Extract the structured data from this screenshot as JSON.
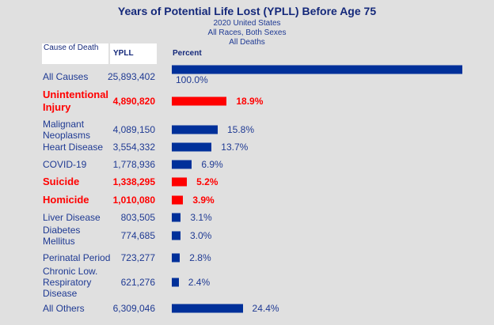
{
  "chart_data": {
    "type": "bar",
    "title": "Years of Potential Life Lost (YPLL) Before Age 75",
    "subtitles": [
      "2020 United States",
      "All Races, Both Sexes",
      "All Deaths"
    ],
    "headers": {
      "cause": "Cause of Death",
      "ypll": "YPLL",
      "percent": "Percent"
    },
    "xlim": [
      0,
      100
    ],
    "colors": {
      "normal": "#00309a",
      "highlight": "#ff0000"
    },
    "rows": [
      {
        "cause": "All Causes",
        "ypll": "25,893,402",
        "percent": 100.0,
        "percent_label": "100.0%",
        "highlight": false
      },
      {
        "cause": "Unintentional Injury",
        "ypll": "4,890,820",
        "percent": 18.9,
        "percent_label": "18.9%",
        "highlight": true
      },
      {
        "cause": "Malignant Neoplasms",
        "ypll": "4,089,150",
        "percent": 15.8,
        "percent_label": "15.8%",
        "highlight": false
      },
      {
        "cause": "Heart Disease",
        "ypll": "3,554,332",
        "percent": 13.7,
        "percent_label": "13.7%",
        "highlight": false
      },
      {
        "cause": "COVID-19",
        "ypll": "1,778,936",
        "percent": 6.9,
        "percent_label": "6.9%",
        "highlight": false
      },
      {
        "cause": "Suicide",
        "ypll": "1,338,295",
        "percent": 5.2,
        "percent_label": "5.2%",
        "highlight": true
      },
      {
        "cause": "Homicide",
        "ypll": "1,010,080",
        "percent": 3.9,
        "percent_label": "3.9%",
        "highlight": true
      },
      {
        "cause": "Liver Disease",
        "ypll": "803,505",
        "percent": 3.1,
        "percent_label": "3.1%",
        "highlight": false
      },
      {
        "cause": "Diabetes Mellitus",
        "ypll": "774,685",
        "percent": 3.0,
        "percent_label": "3.0%",
        "highlight": false
      },
      {
        "cause": "Perinatal Period",
        "ypll": "723,277",
        "percent": 2.8,
        "percent_label": "2.8%",
        "highlight": false
      },
      {
        "cause": "Chronic Low. Respiratory Disease",
        "ypll": "621,276",
        "percent": 2.4,
        "percent_label": "2.4%",
        "highlight": false
      },
      {
        "cause": "All Others",
        "ypll": "6,309,046",
        "percent": 24.4,
        "percent_label": "24.4%",
        "highlight": false
      }
    ]
  }
}
